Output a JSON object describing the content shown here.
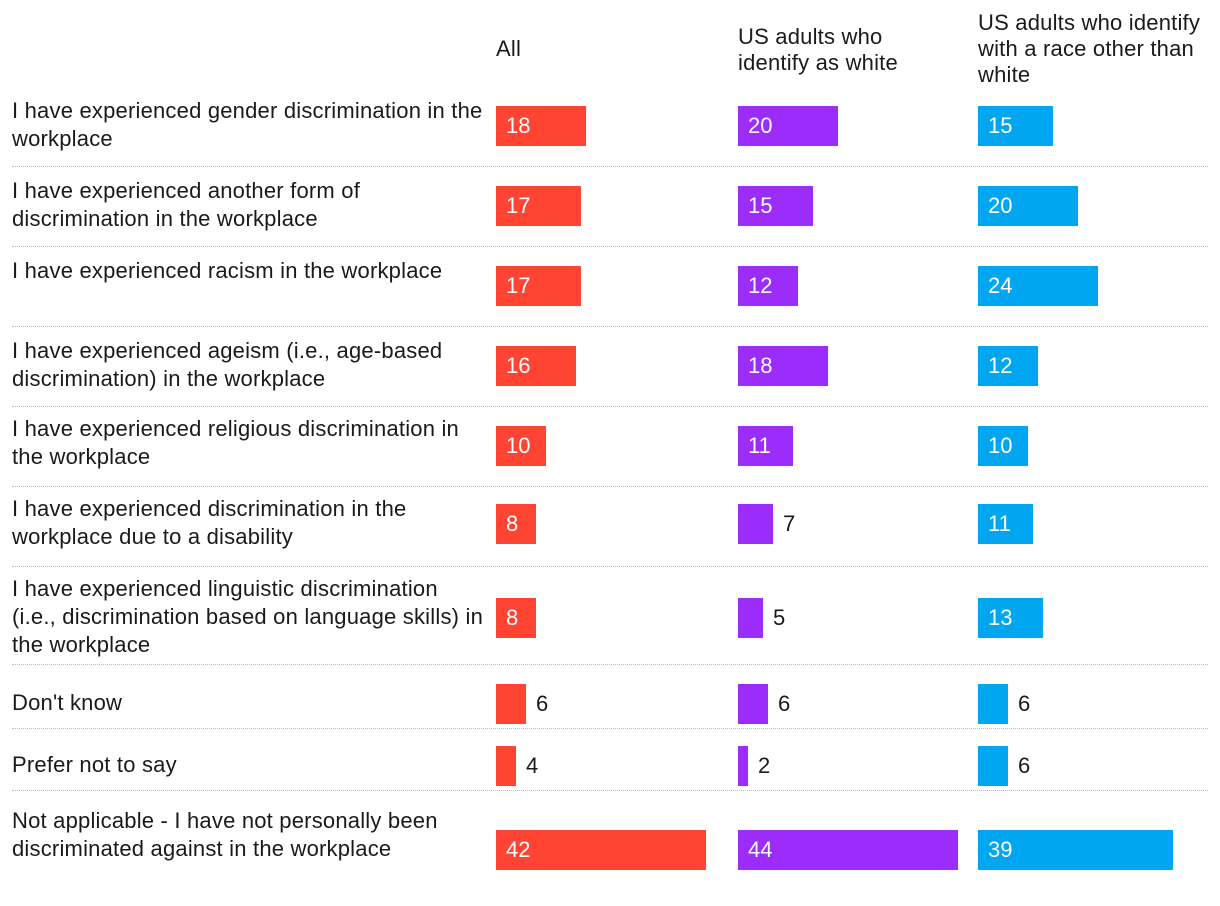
{
  "chart_data": {
    "type": "bar",
    "orientation": "horizontal",
    "layout": "small-multiples",
    "categories": [
      "I have experienced gender discrimination in the workplace",
      "I have experienced another form of discrimination in the workplace",
      "I have experienced racism in the workplace",
      "I have experienced ageism (i.e., age-based discrimination) in the workplace",
      "I have experienced religious discrimination in the workplace",
      "I have experienced discrimination in the workplace due to a disability",
      "I have experienced linguistic discrimination (i.e., discrimination based on language skills) in the workplace",
      "Don't know",
      "Prefer not to say",
      "Not applicable - I have not personally been discriminated against in the workplace"
    ],
    "series": [
      {
        "name": "All",
        "color": "#ff4433",
        "values": [
          18,
          17,
          17,
          16,
          10,
          8,
          8,
          6,
          4,
          42
        ]
      },
      {
        "name": "US adults who identify as white",
        "color": "#9b2cfa",
        "values": [
          20,
          15,
          12,
          18,
          11,
          7,
          5,
          6,
          2,
          44
        ]
      },
      {
        "name": "US adults who identify with a race other than white",
        "color": "#00a6f0",
        "values": [
          15,
          20,
          24,
          12,
          10,
          11,
          13,
          6,
          6,
          39
        ]
      }
    ],
    "xlim": [
      0,
      50
    ],
    "grid": false,
    "legend": "column headers at top"
  }
}
